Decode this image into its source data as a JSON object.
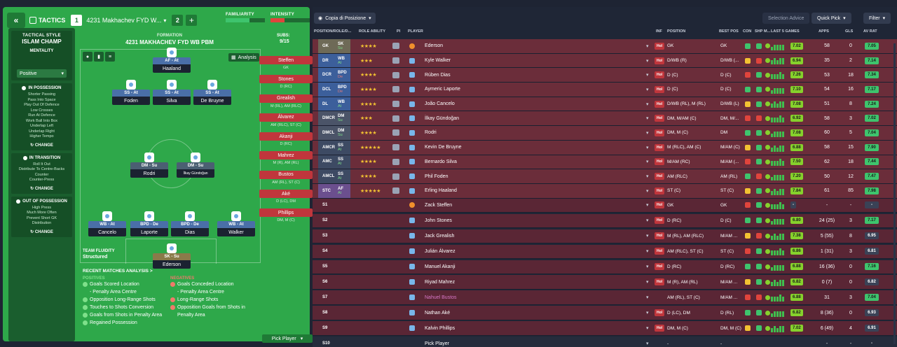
{
  "topbar": {
    "back_label": "«",
    "tactics_label": "TACTICS",
    "slot1": "1",
    "slot1_name": "4231 Makhachev  FYD W...",
    "slot2": "2",
    "add": "+"
  },
  "meters": {
    "familiarity": "FAMILIARITY",
    "familiarity_pct": 0.6,
    "intensity": "INTENSITY",
    "intensity_pct": 0.35,
    "familiarity_color": "#3ec46d",
    "intensity_color": "#e0443c"
  },
  "side": {
    "style_h": "TACTICAL STYLE",
    "style": "ISLAM CHAMP",
    "mentality_h": "MENTALITY",
    "mentality": "Positive",
    "possession_h": "IN POSSESSION",
    "possession": [
      "Shorter Passing",
      "Pass Into Space",
      "Play Out Of Defence",
      "Low Crosses",
      "Run At Defence",
      "Work Ball Into Box",
      "Underlap Left",
      "Underlap Right",
      "Higher Tempo"
    ],
    "transition_h": "IN TRANSITION",
    "transition": [
      "Roll It Out",
      "Distribute To Centre-Backs",
      "Counter",
      "Counter-Press"
    ],
    "oop_h": "OUT OF POSSESSION",
    "oop": [
      "High Press",
      "Much More Often",
      "Prevent Short GK",
      "Distribution"
    ],
    "change": "CHANGE"
  },
  "pitch": {
    "formation_lbl": "FORMATION",
    "formation": "4231 MAKHACHEV  FYD WB PBM",
    "subs_lbl": "SUBS:",
    "subs_val": "9/15",
    "analysis": "Analysis",
    "players": [
      {
        "role": "AF - At",
        "name": "Haaland"
      },
      {
        "role": "SS - At",
        "name": "Foden"
      },
      {
        "role": "SS - At",
        "name": "Silva"
      },
      {
        "role": "SS - At",
        "name": "De Bruyne"
      },
      {
        "role": "DM - Su",
        "name": "Rodri"
      },
      {
        "role": "DM - Su",
        "name": "İlkay Gündoğan"
      },
      {
        "role": "WB - At",
        "name": "Cancelo"
      },
      {
        "role": "BPD - De",
        "name": "Laporte"
      },
      {
        "role": "BPD - De",
        "name": "Dias"
      },
      {
        "role": "WB - At",
        "name": "Walker"
      },
      {
        "role": "SK - Su",
        "name": "Ederson"
      }
    ],
    "subs": [
      {
        "name": "Steffen",
        "pos": "GK"
      },
      {
        "name": "Stones",
        "pos": "D (RC)"
      },
      {
        "name": "Grealish",
        "pos": "M (RL), AM (RLC)"
      },
      {
        "name": "Álvarez",
        "pos": "AM (RLC), ST (C)"
      },
      {
        "name": "Akanji",
        "pos": "D (RC)"
      },
      {
        "name": "Mahrez",
        "pos": "M (R), AM (RL)"
      },
      {
        "name": "Bustos",
        "pos": "AM (RL), ST (C)"
      },
      {
        "name": "Aké",
        "pos": "D (LC), DM"
      },
      {
        "name": "Phillips",
        "pos": "DM, M (C)"
      }
    ],
    "pick_player": "Pick Player",
    "fluidity_h": "TEAM FLUIDITY",
    "fluidity": "Structured"
  },
  "recent": {
    "title": "RECENT MATCHES ANALYSIS >",
    "pos_h": "POSITIVES",
    "neg_h": "NEGATIVES",
    "positives": [
      "Goals Scored Location",
      "- Penalty Area Centre",
      "Opposition Long-Range Shots",
      "Touches to Shots Conversion",
      "Goals from Shots in Penalty Area",
      "Regained Possession"
    ],
    "negatives": [
      "Goals Conceded Location",
      "- Penalty Area Centre",
      "Long-Range Shots",
      "Opposition Goals from Shots in Penalty Area"
    ],
    "pos_color": "#7ee08a",
    "neg_color": "#f07a6a"
  },
  "right": {
    "copy_dd": "Copia di Posizione",
    "selection_advice": "Selection Advice",
    "quick_pick": "Quick Pick",
    "filter": "Filter",
    "headers": [
      "POSITION/ROLE/D...",
      "ROLE ABILITY",
      "PI",
      "PLAYER",
      "INF",
      "POSITION",
      "BEST POS",
      "CON",
      "SHP",
      "M...",
      "LAST 5 GAMES",
      "APPS",
      "GLS",
      "AV RAT"
    ],
    "rows": [
      {
        "pos": "GK",
        "role": "SK",
        "duty": "Su",
        "stars": "★★★★",
        "name": "Ederson",
        "gk": true,
        "inf": "Hol",
        "position": "GK",
        "best": "GK",
        "last": "7.02",
        "apps": "58",
        "gls": "0",
        "avr": "7.05",
        "avc": "#3ec46d"
      },
      {
        "pos": "DR",
        "role": "WB",
        "duty": "At",
        "stars": "★★★",
        "name": "Kyle Walker",
        "inf": "Hol",
        "position": "D/WB (R)",
        "best": "D/WB (...",
        "last": "6.94",
        "apps": "35",
        "gls": "2",
        "avr": "7.14",
        "avc": "#3ec46d"
      },
      {
        "pos": "DCR",
        "role": "BPD",
        "duty": "De",
        "stars": "★★★★",
        "name": "Rúben Dias",
        "inf": "Hol",
        "position": "D (C)",
        "best": "D (C)",
        "last": "7.26",
        "apps": "53",
        "gls": "18",
        "avr": "7.34",
        "avc": "#3ec46d"
      },
      {
        "pos": "DCL",
        "role": "BPD",
        "duty": "De",
        "stars": "★★★★",
        "name": "Aymeric Laporte",
        "inf": "Hol",
        "position": "D (C)",
        "best": "D (C)",
        "last": "7.10",
        "apps": "54",
        "gls": "16",
        "avr": "7.17",
        "avc": "#3ec46d"
      },
      {
        "pos": "DL",
        "role": "WB",
        "duty": "At",
        "stars": "★★★★",
        "name": "João Cancelo",
        "inf": "Hol",
        "position": "D/WB (RL), M (RL)",
        "best": "D/WB (L)",
        "last": "7.08",
        "apps": "51",
        "gls": "8",
        "avr": "7.24",
        "avc": "#3ec46d"
      },
      {
        "pos": "DMCR",
        "role": "DM",
        "duty": "Su",
        "stars": "★★★",
        "name": "İlkay Gündoğan",
        "inf": "Hol",
        "position": "DM, M/AM (C)",
        "best": "DM, M/...",
        "last": "6.92",
        "apps": "58",
        "gls": "3",
        "avr": "7.02",
        "avc": "#3ec46d"
      },
      {
        "pos": "DMCL",
        "role": "DM",
        "duty": "Su",
        "stars": "★★★★",
        "name": "Rodri",
        "inf": "Hol",
        "position": "DM, M (C)",
        "best": "DM",
        "last": "7.08",
        "apps": "60",
        "gls": "5",
        "avr": "7.04",
        "avc": "#3ec46d"
      },
      {
        "pos": "AMCR",
        "role": "SS",
        "duty": "At",
        "stars": "★★★★★",
        "name": "Kevin De Bruyne",
        "inf": "Hol",
        "position": "M (RLC), AM (C)",
        "best": "M/AM (C)",
        "last": "6.88",
        "apps": "58",
        "gls": "15",
        "avr": "7.90",
        "avc": "#3ec46d"
      },
      {
        "pos": "AMC",
        "role": "SS",
        "duty": "At",
        "stars": "★★★★",
        "name": "Bernardo Silva",
        "inf": "Hol",
        "position": "M/AM (RC)",
        "best": "M/AM (...",
        "last": "7.50",
        "apps": "62",
        "gls": "18",
        "avr": "7.44",
        "avc": "#3ec46d"
      },
      {
        "pos": "AMCL",
        "role": "SS",
        "duty": "At",
        "stars": "★★★★",
        "name": "Phil Foden",
        "inf": "Hol",
        "position": "AM (RLC)",
        "best": "AM (RL)",
        "last": "7.20",
        "apps": "50",
        "gls": "12",
        "avr": "7.47",
        "avc": "#3ec46d"
      },
      {
        "pos": "STC",
        "role": "AF",
        "duty": "At",
        "stars": "★★★★★",
        "name": "Erling Haaland",
        "inf": "Hol",
        "position": "ST (C)",
        "best": "ST (C)",
        "last": "7.84",
        "apps": "61",
        "gls": "85",
        "avr": "7.98",
        "avc": "#3ec46d"
      },
      {
        "pos": "S1",
        "name": "Zack Steffen",
        "gk": true,
        "inf": "Hol",
        "position": "GK",
        "best": "GK",
        "last": "-",
        "apps": "-",
        "gls": "-",
        "avr": "-",
        "avc": "#3a4256"
      },
      {
        "pos": "S2",
        "name": "John Stones",
        "inf": "Hol",
        "position": "D (RC)",
        "best": "D (C)",
        "last": "6.80",
        "apps": "24 (25)",
        "gls": "3",
        "avr": "7.17",
        "avc": "#3ec46d"
      },
      {
        "pos": "S3",
        "name": "Jack Grealish",
        "inf": "Hol",
        "position": "M (RL), AM (RLC)",
        "best": "M/AM ...",
        "last": "7.38",
        "apps": "5 (55)",
        "gls": "8",
        "avr": "6.95",
        "avc": "#3a4256"
      },
      {
        "pos": "S4",
        "name": "Julián Álvarez",
        "inf": "Hol",
        "position": "AM (RLC), ST (C)",
        "best": "ST (C)",
        "last": "6.86",
        "apps": "1 (31)",
        "gls": "3",
        "avr": "6.81",
        "avc": "#3a4256"
      },
      {
        "pos": "S5",
        "name": "Manuel Akanji",
        "inf": "Hol",
        "position": "D (RC)",
        "best": "D (RC)",
        "last": "6.88",
        "apps": "16 (36)",
        "gls": "0",
        "avr": "7.16",
        "avc": "#3ec46d"
      },
      {
        "pos": "S6",
        "name": "Riyad Mahrez",
        "inf": "Hol",
        "position": "M (R), AM (RL)",
        "best": "M/AM ...",
        "last": "6.82",
        "apps": "0 (7)",
        "gls": "0",
        "avr": "6.82",
        "avc": "#3a4256"
      },
      {
        "pos": "S7",
        "name": "Nahuel Bustos",
        "pink": true,
        "inf": "",
        "position": "AM (RL), ST (C)",
        "best": "M/AM ...",
        "last": "6.88",
        "apps": "31",
        "gls": "3",
        "avr": "7.04",
        "avc": "#3ec46d"
      },
      {
        "pos": "S8",
        "name": "Nathan Aké",
        "inf": "Hol",
        "position": "D (LC), DM",
        "best": "D (RL)",
        "last": "6.82",
        "apps": "8 (36)",
        "gls": "0",
        "avr": "6.93",
        "avc": "#3a4256"
      },
      {
        "pos": "S9",
        "name": "Kalvin Phillips",
        "inf": "Hol",
        "position": "DM, M (C)",
        "best": "DM, M (C)",
        "last": "7.02",
        "apps": "6 (49)",
        "gls": "4",
        "avr": "6.91",
        "avc": "#3a4256"
      },
      {
        "pos": "S10",
        "name": "Pick Player",
        "empty": true,
        "inf": "",
        "position": "-",
        "best": "-",
        "last": "",
        "apps": "-",
        "gls": "-",
        "avr": "-",
        "avc": "#252c3c"
      }
    ]
  }
}
